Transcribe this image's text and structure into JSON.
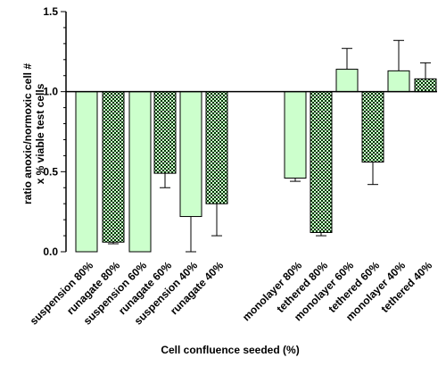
{
  "chart_data": {
    "type": "bar",
    "title": "",
    "xlabel": "Cell confluence seeded (%)",
    "ylabel_lines": [
      "ratio anoxic/normoxic cell #",
      "x % viable test cells"
    ],
    "ylim": [
      0,
      1.5
    ],
    "baseline": 1.0,
    "yticks": [
      "0.0",
      "0.5",
      "1.0",
      "1.5"
    ],
    "colors": {
      "solid": "#ccffcc",
      "pattern_dark": "#003300",
      "pattern_light": "#ccffcc"
    },
    "categories": [
      "suspension 80%",
      "runagate 80%",
      "suspension 60%",
      "runagate 60%",
      "suspension 40%",
      "runagate 40%",
      "monolayer 80%",
      "tethered 80%",
      "monolayer 60%",
      "tethered 60%",
      "monolayer 40%",
      "tethered 40%"
    ],
    "values": [
      0.0,
      0.06,
      0.0,
      0.49,
      0.22,
      0.3,
      0.46,
      0.12,
      1.14,
      0.56,
      1.13,
      1.08
    ],
    "error_ends": [
      null,
      0.05,
      null,
      0.4,
      0.0,
      0.1,
      0.44,
      0.1,
      1.27,
      0.42,
      1.32,
      1.18
    ],
    "fills": [
      "solid",
      "checker",
      "solid",
      "checker",
      "solid",
      "checker",
      "solid",
      "checker",
      "solid",
      "checker",
      "solid",
      "checker"
    ]
  }
}
